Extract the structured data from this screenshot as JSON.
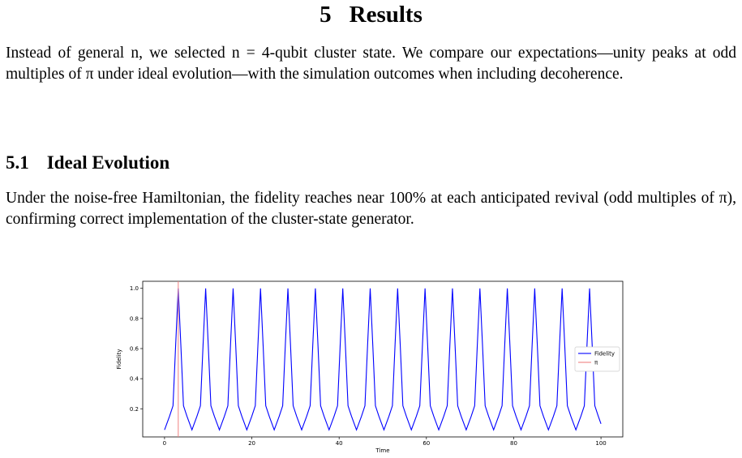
{
  "section": {
    "number": "5",
    "title": "Results",
    "body": "Instead of general n, we selected n = 4-qubit cluster state. We compare our expectations—unity peaks at odd multiples of π under ideal evolution—with the simulation outcomes when including decoherence."
  },
  "subsection": {
    "number": "5.1",
    "title": "Ideal Evolution",
    "body": "Under the noise-free Hamiltonian, the fidelity reaches near 100% at each anticipated revival (odd multiples of π), confirming correct implementation of the cluster-state generator."
  },
  "chart_data": {
    "type": "line",
    "x_label": "Time",
    "y_label": "Fidelity",
    "legend": "center right",
    "xlim": [
      -5,
      105
    ],
    "xticks": [
      0,
      20,
      40,
      60,
      80,
      100
    ],
    "ylim": [
      0.013,
      1.047
    ],
    "yticks": [
      0.2,
      0.4,
      0.6,
      0.8,
      {
        "value": 1,
        "label": "1.0"
      }
    ],
    "x": [
      0,
      1.14,
      1.94,
      2.54,
      3.14,
      3.74,
      4.34,
      5.14,
      6.28,
      7.42,
      8.22,
      8.82,
      9.42,
      10.02,
      10.62,
      11.42,
      12.57,
      13.71,
      14.51,
      15.11,
      15.71,
      16.31,
      16.91,
      17.71,
      18.85,
      19.99,
      20.79,
      21.39,
      21.99,
      22.59,
      23.19,
      23.99,
      25.13,
      26.27,
      27.07,
      27.67,
      28.27,
      28.87,
      29.47,
      30.27,
      31.42,
      32.56,
      33.36,
      33.96,
      34.56,
      35.16,
      35.76,
      36.56,
      37.7,
      38.84,
      39.64,
      40.24,
      40.84,
      41.44,
      42.04,
      42.84,
      43.98,
      45.12,
      45.92,
      46.52,
      47.12,
      47.72,
      48.32,
      49.12,
      50.27,
      51.41,
      52.21,
      52.81,
      53.41,
      54.01,
      54.61,
      55.41,
      56.55,
      57.69,
      58.49,
      59.09,
      59.69,
      60.29,
      60.89,
      61.69,
      62.83,
      63.97,
      64.77,
      65.37,
      65.97,
      66.57,
      67.17,
      67.97,
      69.12,
      70.26,
      71.06,
      71.66,
      72.26,
      72.86,
      73.46,
      74.26,
      75.4,
      76.54,
      77.34,
      77.94,
      78.54,
      79.14,
      79.74,
      80.54,
      81.68,
      82.82,
      83.62,
      84.22,
      84.82,
      85.42,
      86.02,
      86.82,
      87.96,
      89.1,
      89.9,
      90.5,
      91.1,
      91.7,
      92.3,
      93.1,
      94.25,
      95.39,
      96.19,
      96.79,
      97.39,
      97.99,
      98.59,
      99.39,
      100
    ],
    "series": [
      {
        "name": "Fidelity",
        "color": "#0000ff",
        "values": [
          0.06,
          0.15,
          0.22,
          0.62,
          1.0,
          0.62,
          0.22,
          0.15,
          0.06,
          0.15,
          0.22,
          0.62,
          1.0,
          0.62,
          0.22,
          0.15,
          0.06,
          0.15,
          0.22,
          0.62,
          1.0,
          0.62,
          0.22,
          0.15,
          0.06,
          0.15,
          0.22,
          0.62,
          1.0,
          0.62,
          0.22,
          0.15,
          0.06,
          0.15,
          0.22,
          0.62,
          1.0,
          0.62,
          0.22,
          0.15,
          0.06,
          0.15,
          0.22,
          0.62,
          1.0,
          0.62,
          0.22,
          0.15,
          0.06,
          0.15,
          0.22,
          0.62,
          1.0,
          0.62,
          0.22,
          0.15,
          0.06,
          0.15,
          0.22,
          0.62,
          1.0,
          0.62,
          0.22,
          0.15,
          0.06,
          0.15,
          0.22,
          0.62,
          1.0,
          0.62,
          0.22,
          0.15,
          0.06,
          0.15,
          0.22,
          0.62,
          1.0,
          0.62,
          0.22,
          0.15,
          0.06,
          0.15,
          0.22,
          0.62,
          1.0,
          0.62,
          0.22,
          0.15,
          0.06,
          0.15,
          0.22,
          0.62,
          1.0,
          0.62,
          0.22,
          0.15,
          0.06,
          0.15,
          0.22,
          0.62,
          1.0,
          0.62,
          0.22,
          0.15,
          0.06,
          0.15,
          0.22,
          0.62,
          1.0,
          0.62,
          0.22,
          0.15,
          0.06,
          0.15,
          0.22,
          0.62,
          1.0,
          0.62,
          0.22,
          0.15,
          0.06,
          0.15,
          0.22,
          0.62,
          1.0,
          0.62,
          0.22,
          0.15,
          0.1
        ]
      }
    ],
    "vlines": [
      {
        "name": "π",
        "x": 3.14159,
        "color": "#f08080"
      }
    ]
  }
}
